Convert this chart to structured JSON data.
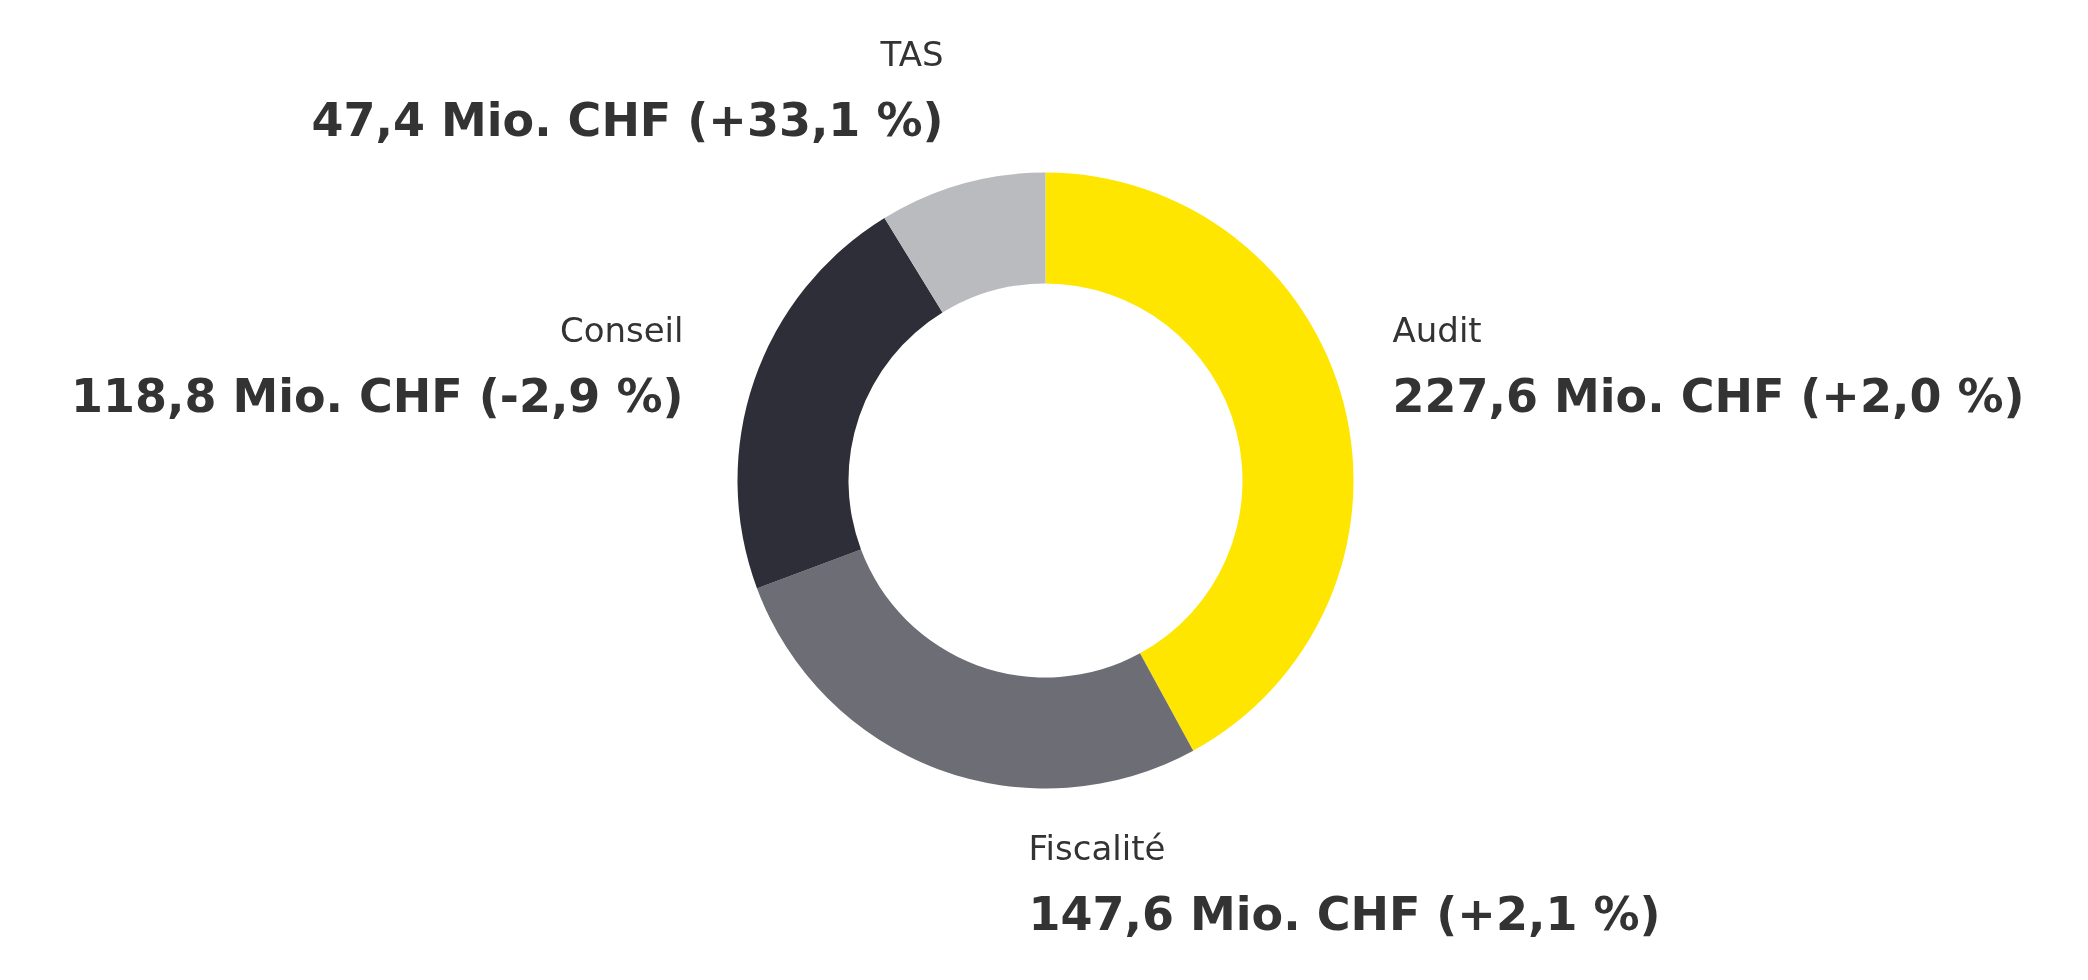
{
  "chart_data": {
    "type": "donut",
    "categories": [
      "Audit",
      "Fiscalité",
      "Conseil",
      "TAS"
    ],
    "values": [
      227.6,
      147.6,
      118.8,
      47.4
    ],
    "value_labels": [
      "227,6 Mio. CHF (+2,0 %)",
      "147,6 Mio. CHF (+2,1 %)",
      "118,8 Mio. CHF (-2,9 %)",
      "47,4 Mio. CHF (+33,1 %)"
    ],
    "colors": [
      "#ffe600",
      "#6d6e75",
      "#2e2e38",
      "#babbbf"
    ],
    "legend": false
  }
}
